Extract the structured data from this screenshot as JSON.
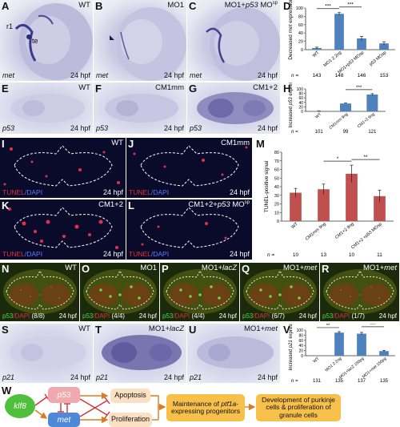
{
  "row1": {
    "A": {
      "letter": "A",
      "condition": "WT",
      "label_r1": "r1",
      "label_te": "te",
      "gene": "met",
      "stage": "24 hpf"
    },
    "B": {
      "letter": "B",
      "condition": "MO1",
      "gene": "met",
      "stage": "24 hpf"
    },
    "C": {
      "letter": "C",
      "condition_main": "MO1+",
      "condition_gene": "p53",
      "condition_mo": " MO",
      "condition_sup": "sp",
      "gene": "met",
      "stage": "24 hpf"
    }
  },
  "row2": {
    "E": {
      "letter": "E",
      "condition": "WT",
      "gene": "p53",
      "stage": "24 hpf"
    },
    "F": {
      "letter": "F",
      "condition": "CM1mm",
      "gene": "p53",
      "stage": "24 hpf"
    },
    "G": {
      "letter": "G",
      "condition": "CM1+2",
      "gene": "p53",
      "stage": "24 hpf"
    }
  },
  "row3": {
    "I": {
      "letter": "I",
      "condition": "WT",
      "tunel": "TUNEL",
      "dapi": "/DAPI",
      "stage": "24 hpf"
    },
    "J": {
      "letter": "J",
      "condition": "CM1mm",
      "tunel": "TUNEL",
      "dapi": "/DAPI",
      "stage": "24 hpf"
    },
    "K": {
      "letter": "K",
      "condition": "CM1+2",
      "tunel": "TUNEL",
      "dapi": "/DAPI",
      "stage": "24 hpf"
    },
    "L": {
      "letter": "L",
      "condition_main": "CM1+2+",
      "condition_gene": "p53",
      "condition_mo": " MO",
      "condition_sup": "sp",
      "tunel": "TUNEL",
      "dapi": "/DAPI",
      "stage": "24 hpf"
    }
  },
  "row4": [
    {
      "letter": "N",
      "condition": "WT",
      "p53": "p53",
      "dapi": "/DAPI",
      "count": "(8/8)",
      "stage": "24 hpf"
    },
    {
      "letter": "O",
      "condition": "MO1",
      "p53": "p53",
      "dapi": "/DAPI",
      "count": "(4/4)",
      "stage": "24 hpf"
    },
    {
      "letter": "P",
      "condition_main": "MO1+",
      "condition_gene": "lacZ",
      "p53": "p53",
      "dapi": "/DAPI",
      "count": "(4/4)",
      "stage": "24 hpf"
    },
    {
      "letter": "Q",
      "condition_main": "MO1+",
      "condition_gene": "met",
      "p53": "p53",
      "dapi": "/DAPI",
      "count": "(6/7)",
      "stage": "24 hpf"
    },
    {
      "letter": "R",
      "condition_main": "MO1+",
      "condition_gene": "met",
      "p53": "p53",
      "dapi": "/DAPI",
      "count": "(1/7)",
      "stage": "24 hpf"
    }
  ],
  "row5": {
    "S": {
      "letter": "S",
      "condition": "WT",
      "gene": "p21",
      "stage": "24 hpf"
    },
    "T": {
      "letter": "T",
      "condition_main": "MO1+",
      "condition_gene": "lacZ",
      "gene": "p21",
      "stage": "24 hpf"
    },
    "U": {
      "letter": "U",
      "condition_main": "MO1+",
      "condition_gene": "met",
      "gene": "p21",
      "stage": "24 hpf"
    }
  },
  "chart_data": [
    {
      "panel": "D",
      "type": "bar",
      "ylabel_main": "Decreased ",
      "ylabel_gene": "met",
      "ylabel_tail": " expression",
      "ylim": [
        0,
        100
      ],
      "yticks": [
        0,
        20,
        40,
        60,
        80,
        100
      ],
      "categories": [
        "WT",
        "MO1 2.2ng",
        "MO1+p53 MOsp",
        "p53 MOsp"
      ],
      "values": [
        4,
        86,
        27,
        15
      ],
      "errors": [
        2,
        3,
        5,
        4
      ],
      "n_label": "n =",
      "n": [
        "143",
        "148",
        "146",
        "153"
      ],
      "significance": [
        {
          "from": 0,
          "to": 1,
          "label": "***"
        },
        {
          "from": 1,
          "to": 2,
          "label": "***"
        }
      ]
    },
    {
      "panel": "H",
      "type": "bar",
      "ylabel_main": "Increased ",
      "ylabel_gene": "p53",
      "ylabel_tail": " expression",
      "ylim": [
        0,
        100
      ],
      "yticks": [
        0,
        20,
        40,
        60,
        80,
        100
      ],
      "categories": [
        "WT",
        "CM1mm 9ng",
        "CM1+2 9ng"
      ],
      "values": [
        1,
        35,
        75
      ],
      "errors": [
        1,
        2,
        4
      ],
      "n_label": "n =",
      "n": [
        "101",
        "99",
        "121"
      ],
      "significance": [
        {
          "from": 1,
          "to": 2,
          "label": "***"
        }
      ]
    },
    {
      "panel": "M",
      "type": "bar",
      "ylabel_main": "TUNEL-positive signal",
      "ylabel_gene": "",
      "ylabel_tail": "",
      "ylim": [
        0,
        80
      ],
      "yticks": [
        0,
        10,
        20,
        30,
        40,
        50,
        60,
        70,
        80
      ],
      "categories": [
        "WT",
        "CM1mm 9ng",
        "CM1+2 9ng",
        "CM1+2 +p53 MOsp"
      ],
      "values": [
        33,
        37,
        55,
        29
      ],
      "errors": [
        5,
        6,
        10,
        7
      ],
      "n_label": "n =",
      "n": [
        "10",
        "13",
        "10",
        "11"
      ],
      "significance": [
        {
          "from": 1,
          "to": 2,
          "label": "*"
        },
        {
          "from": 2,
          "to": 3,
          "label": "**"
        }
      ]
    },
    {
      "panel": "V",
      "type": "bar",
      "ylabel_main": "Increased ",
      "ylabel_gene": "p21",
      "ylabel_tail": " expression",
      "ylim": [
        0,
        100
      ],
      "yticks": [
        0,
        20,
        40,
        60,
        80,
        100
      ],
      "categories": [
        "WT",
        "MO1 2.2ng",
        "MO1+lacZ 150pg",
        "MO1+met 150pg"
      ],
      "values": [
        0,
        90,
        86,
        18
      ],
      "errors": [
        0,
        4,
        5,
        3
      ],
      "n_label": "n =",
      "n": [
        "131",
        "135",
        "137",
        "135"
      ],
      "significance": [
        {
          "from": 0,
          "to": 1,
          "label": "**"
        },
        {
          "from": 2,
          "to": 3,
          "label": "***"
        }
      ]
    }
  ],
  "panelW": {
    "letter": "W",
    "klf8": "klf8",
    "p53": "p53",
    "met": "met",
    "apoptosis": "Apoptosis",
    "proliferation": "Proliferation",
    "maintenance_1": "Maintenance of ",
    "maintenance_gene": "ptf1a",
    "maintenance_2": "-expressing progenitors",
    "development": "Development of purkinje cells & proliferation of granule cells"
  }
}
